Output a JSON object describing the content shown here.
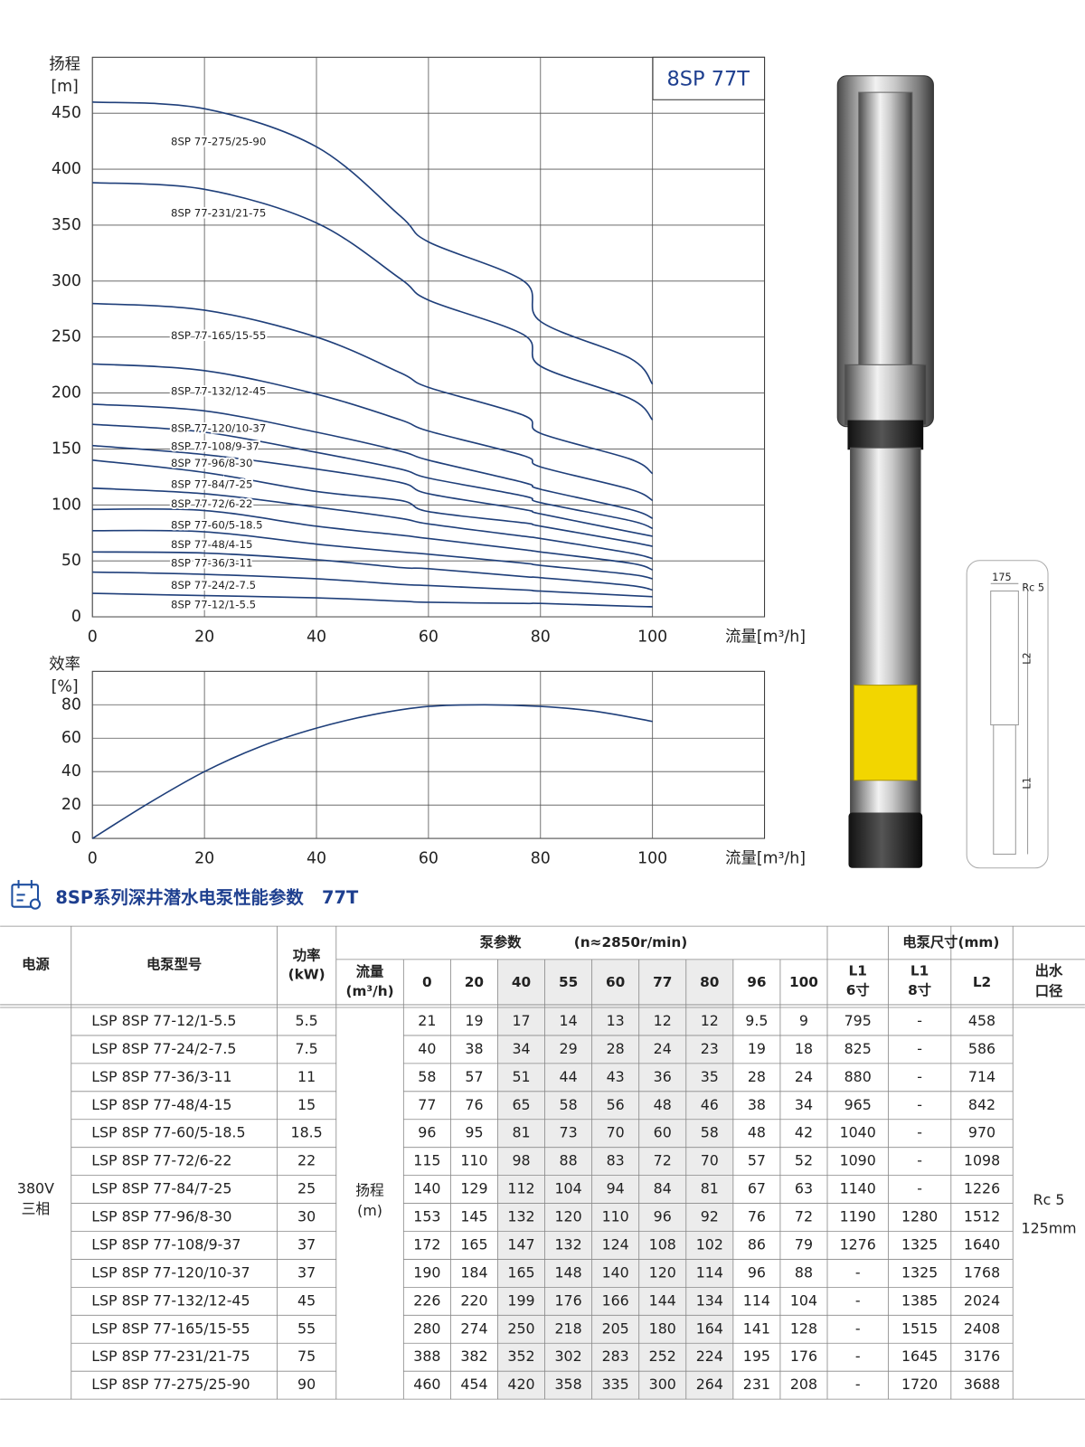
{
  "chart_data": [
    {
      "type": "line",
      "title": "8SP 77T",
      "ylabel": "扬程",
      "yunit": "[m]",
      "xlabel": "流量[m³/h]",
      "x": [
        0,
        20,
        40,
        55,
        60,
        77,
        80,
        96,
        100
      ],
      "xlim": [
        0,
        120
      ],
      "xticks": [
        0,
        20,
        40,
        60,
        80,
        100
      ],
      "ylim": [
        0,
        500
      ],
      "yticks": [
        0,
        50,
        100,
        150,
        200,
        250,
        300,
        350,
        400,
        450
      ],
      "grid": true,
      "series": [
        {
          "name": "8SP 77-12/1-5.5",
          "color": "#1f3f7a",
          "values": [
            21,
            19,
            17,
            14,
            13,
            12,
            12,
            9.5,
            9
          ]
        },
        {
          "name": "8SP 77-24/2-7.5",
          "color": "#1f3f7a",
          "values": [
            40,
            38,
            34,
            29,
            28,
            24,
            23,
            19,
            18
          ]
        },
        {
          "name": "8SP 77-36/3-11",
          "color": "#1f3f7a",
          "values": [
            58,
            57,
            51,
            44,
            43,
            36,
            35,
            28,
            24
          ]
        },
        {
          "name": "8SP 77-48/4-15",
          "color": "#1f3f7a",
          "values": [
            77,
            76,
            65,
            58,
            56,
            48,
            46,
            38,
            34
          ]
        },
        {
          "name": "8SP 77-60/5-18.5",
          "color": "#1f3f7a",
          "values": [
            96,
            95,
            81,
            73,
            70,
            60,
            58,
            48,
            42
          ]
        },
        {
          "name": "8SP 77-72/6-22",
          "color": "#1f3f7a",
          "values": [
            115,
            110,
            98,
            88,
            83,
            72,
            70,
            57,
            52
          ]
        },
        {
          "name": "8SP 77-84/7-25",
          "color": "#1f3f7a",
          "values": [
            140,
            129,
            112,
            104,
            94,
            84,
            81,
            67,
            63
          ]
        },
        {
          "name": "8SP 77-96/8-30",
          "color": "#1f3f7a",
          "values": [
            153,
            145,
            132,
            120,
            110,
            96,
            92,
            76,
            72
          ]
        },
        {
          "name": "8SP 77-108/9-37",
          "color": "#1f3f7a",
          "values": [
            172,
            165,
            147,
            132,
            124,
            108,
            102,
            86,
            79
          ]
        },
        {
          "name": "8SP 77-120/10-37",
          "color": "#1f3f7a",
          "values": [
            190,
            184,
            165,
            148,
            140,
            120,
            114,
            96,
            88
          ]
        },
        {
          "name": "8SP 77-132/12-45",
          "color": "#1f3f7a",
          "values": [
            226,
            220,
            199,
            176,
            166,
            144,
            134,
            114,
            104
          ]
        },
        {
          "name": "8SP 77-165/15-55",
          "color": "#1f3f7a",
          "values": [
            280,
            274,
            250,
            218,
            205,
            180,
            164,
            141,
            128
          ]
        },
        {
          "name": "8SP 77-231/21-75",
          "color": "#1f3f7a",
          "values": [
            388,
            382,
            352,
            302,
            283,
            252,
            224,
            195,
            176
          ]
        },
        {
          "name": "8SP 77-275/25-90",
          "color": "#1f3f7a",
          "values": [
            460,
            454,
            420,
            358,
            335,
            300,
            264,
            231,
            208
          ]
        }
      ]
    },
    {
      "type": "line",
      "ylabel": "效率",
      "yunit": "[%]",
      "xlabel": "流量[m³/h]",
      "x": [
        0,
        10,
        20,
        30,
        40,
        50,
        60,
        70,
        80,
        90,
        100
      ],
      "xlim": [
        0,
        120
      ],
      "xticks": [
        0,
        20,
        40,
        60,
        80,
        100
      ],
      "ylim": [
        0,
        100
      ],
      "yticks": [
        0,
        20,
        40,
        60,
        80
      ],
      "grid": true,
      "series": [
        {
          "color": "#1f3f7a",
          "values": [
            0,
            21,
            40,
            55,
            66,
            74,
            79,
            80,
            79,
            76,
            70
          ]
        }
      ]
    }
  ],
  "section_title": "8SP系列深井潜水电泵性能参数   77T",
  "diagram": {
    "width": "175",
    "outlet": "Rc 5",
    "l2": "L2",
    "l1": "L1"
  },
  "table": {
    "header": {
      "power_supply": "电源",
      "model": "电泵型号",
      "power": [
        "功率",
        "(kW)"
      ],
      "pump_params": "泵参数",
      "speed": "(n≈2850r/min)",
      "flow": [
        "流量",
        "(m³/h)"
      ],
      "flows": [
        "0",
        "20",
        "40",
        "55",
        "60",
        "77",
        "80",
        "96",
        "100"
      ],
      "dimensions": "电泵尺寸(mm)",
      "l1_6": [
        "L1",
        "6寸"
      ],
      "l1_8": [
        "L1",
        "8寸"
      ],
      "l2": "L2",
      "outlet": [
        "出水",
        "口径"
      ]
    },
    "power_supply": [
      "380V",
      "三相"
    ],
    "head": [
      "扬程",
      "(m)"
    ],
    "outlet": [
      "Rc 5",
      "125mm"
    ],
    "rows": [
      [
        "LSP 8SP 77-12/1-5.5",
        "5.5",
        "21",
        "19",
        "17",
        "14",
        "13",
        "12",
        "12",
        "9.5",
        "9",
        "795",
        "-",
        "458"
      ],
      [
        "LSP 8SP 77-24/2-7.5",
        "7.5",
        "40",
        "38",
        "34",
        "29",
        "28",
        "24",
        "23",
        "19",
        "18",
        "825",
        "-",
        "586"
      ],
      [
        "LSP 8SP 77-36/3-11",
        "11",
        "58",
        "57",
        "51",
        "44",
        "43",
        "36",
        "35",
        "28",
        "24",
        "880",
        "-",
        "714"
      ],
      [
        "LSP 8SP 77-48/4-15",
        "15",
        "77",
        "76",
        "65",
        "58",
        "56",
        "48",
        "46",
        "38",
        "34",
        "965",
        "-",
        "842"
      ],
      [
        "LSP 8SP 77-60/5-18.5",
        "18.5",
        "96",
        "95",
        "81",
        "73",
        "70",
        "60",
        "58",
        "48",
        "42",
        "1040",
        "-",
        "970"
      ],
      [
        "LSP 8SP 77-72/6-22",
        "22",
        "115",
        "110",
        "98",
        "88",
        "83",
        "72",
        "70",
        "57",
        "52",
        "1090",
        "-",
        "1098"
      ],
      [
        "LSP 8SP 77-84/7-25",
        "25",
        "140",
        "129",
        "112",
        "104",
        "94",
        "84",
        "81",
        "67",
        "63",
        "1140",
        "-",
        "1226"
      ],
      [
        "LSP 8SP 77-96/8-30",
        "30",
        "153",
        "145",
        "132",
        "120",
        "110",
        "96",
        "92",
        "76",
        "72",
        "1190",
        "1280",
        "1512"
      ],
      [
        "LSP 8SP 77-108/9-37",
        "37",
        "172",
        "165",
        "147",
        "132",
        "124",
        "108",
        "102",
        "86",
        "79",
        "1276",
        "1325",
        "1640"
      ],
      [
        "LSP 8SP 77-120/10-37",
        "37",
        "190",
        "184",
        "165",
        "148",
        "140",
        "120",
        "114",
        "96",
        "88",
        "-",
        "1325",
        "1768"
      ],
      [
        "LSP 8SP 77-132/12-45",
        "45",
        "226",
        "220",
        "199",
        "176",
        "166",
        "144",
        "134",
        "114",
        "104",
        "-",
        "1385",
        "2024"
      ],
      [
        "LSP 8SP 77-165/15-55",
        "55",
        "280",
        "274",
        "250",
        "218",
        "205",
        "180",
        "164",
        "141",
        "128",
        "-",
        "1515",
        "2408"
      ],
      [
        "LSP 8SP 77-231/21-75",
        "75",
        "388",
        "382",
        "352",
        "302",
        "283",
        "252",
        "224",
        "195",
        "176",
        "-",
        "1645",
        "3176"
      ],
      [
        "LSP 8SP 77-275/25-90",
        "90",
        "460",
        "454",
        "420",
        "358",
        "335",
        "300",
        "264",
        "231",
        "208",
        "-",
        "1720",
        "3688"
      ]
    ]
  }
}
